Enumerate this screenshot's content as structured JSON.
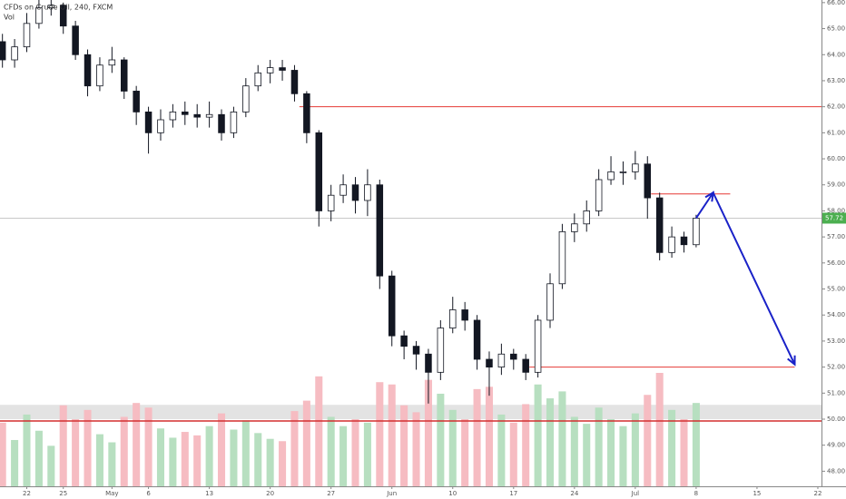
{
  "chart_data": {
    "type": "candlestick",
    "title": "CFDs on Crude Oil, 240, FXCM",
    "subtitle": "Vol",
    "x": [
      -2,
      -1,
      0,
      1,
      2,
      3,
      4,
      5,
      6,
      7,
      8,
      9,
      10,
      11,
      12,
      13,
      14,
      15,
      16,
      17,
      18,
      19,
      20,
      21,
      22,
      23,
      24,
      25,
      26,
      27,
      28,
      29,
      30,
      31,
      32,
      33,
      34,
      35,
      36,
      37,
      38,
      39,
      40,
      41,
      42,
      43,
      44,
      45,
      46,
      47,
      48,
      49,
      50,
      51,
      52,
      53,
      54,
      55
    ],
    "open": [
      64.5,
      63.8,
      64.3,
      65.2,
      65.8,
      65.9,
      65.1,
      64.0,
      62.8,
      63.6,
      63.8,
      62.6,
      61.8,
      61.0,
      61.5,
      61.8,
      61.7,
      61.6,
      61.7,
      61.0,
      61.8,
      62.8,
      63.3,
      63.5,
      63.4,
      62.5,
      61.0,
      58.0,
      58.6,
      59.0,
      58.4,
      59.0,
      55.5,
      53.2,
      52.8,
      52.5,
      51.8,
      53.5,
      54.2,
      53.8,
      52.3,
      52.0,
      52.5,
      52.3,
      51.8,
      53.8,
      55.2,
      57.2,
      57.5,
      58.0,
      59.2,
      59.5,
      59.5,
      59.8,
      58.5,
      56.4,
      57.0,
      56.7
    ],
    "high": [
      64.8,
      64.6,
      65.6,
      66.1,
      66.3,
      66.0,
      65.3,
      64.2,
      63.9,
      64.3,
      63.9,
      62.8,
      62.0,
      61.9,
      62.1,
      62.2,
      62.1,
      62.2,
      61.9,
      62.0,
      63.1,
      63.6,
      63.8,
      63.8,
      63.6,
      62.6,
      61.1,
      59.0,
      59.4,
      59.3,
      59.6,
      59.2,
      55.7,
      53.4,
      53.0,
      52.7,
      53.8,
      54.7,
      54.5,
      54.0,
      52.6,
      52.9,
      52.7,
      52.5,
      54.0,
      55.6,
      57.5,
      57.9,
      58.4,
      59.6,
      60.1,
      59.9,
      60.3,
      60.1,
      58.7,
      57.4,
      57.2,
      57.85
    ],
    "low": [
      63.5,
      63.5,
      64.1,
      65.0,
      65.5,
      64.8,
      63.8,
      62.4,
      62.6,
      63.3,
      62.3,
      61.3,
      60.2,
      60.7,
      61.2,
      61.3,
      61.2,
      61.2,
      60.7,
      60.8,
      61.6,
      62.6,
      62.9,
      63.0,
      62.2,
      60.6,
      57.4,
      57.6,
      58.3,
      57.9,
      57.8,
      55.0,
      52.8,
      52.3,
      51.9,
      50.6,
      51.5,
      53.3,
      53.4,
      51.9,
      50.9,
      51.7,
      51.9,
      51.5,
      51.6,
      53.5,
      55.0,
      56.8,
      57.2,
      57.8,
      59.0,
      59.0,
      59.2,
      57.7,
      56.1,
      56.2,
      56.4,
      56.6
    ],
    "close": [
      63.8,
      64.3,
      65.2,
      65.8,
      65.9,
      65.1,
      64.0,
      62.8,
      63.6,
      63.8,
      62.6,
      61.8,
      61.0,
      61.5,
      61.8,
      61.7,
      61.6,
      61.7,
      61.0,
      61.8,
      62.8,
      63.3,
      63.5,
      63.4,
      62.5,
      61.0,
      58.0,
      58.6,
      59.0,
      58.4,
      59.0,
      55.5,
      53.2,
      52.8,
      52.5,
      51.8,
      53.5,
      54.2,
      53.8,
      52.3,
      52.0,
      52.5,
      52.3,
      51.8,
      53.8,
      55.2,
      57.2,
      57.5,
      58.0,
      59.2,
      59.5,
      59.5,
      59.8,
      58.5,
      56.4,
      57.0,
      56.7,
      57.72
    ],
    "volume": [
      55,
      40,
      62,
      48,
      35,
      70,
      58,
      66,
      45,
      38,
      60,
      72,
      68,
      50,
      42,
      47,
      44,
      52,
      63,
      49,
      57,
      46,
      41,
      39,
      65,
      74,
      95,
      60,
      52,
      58,
      55,
      90,
      88,
      70,
      64,
      92,
      80,
      66,
      58,
      84,
      86,
      62,
      55,
      71,
      88,
      76,
      82,
      60,
      54,
      68,
      58,
      52,
      63,
      79,
      98,
      66,
      58,
      72
    ],
    "up_color": "#131722",
    "down_color": "#131722",
    "volume_up_color": "#b7dfc0",
    "volume_down_color": "#f6bcc2",
    "xlim": [
      -2.2,
      65.3
    ],
    "ylim": [
      47.63,
      66.1
    ],
    "xticks": [
      {
        "value": 0,
        "label": "22"
      },
      {
        "value": 3,
        "label": "25"
      },
      {
        "value": 7,
        "label": "May"
      },
      {
        "value": 10,
        "label": "6"
      },
      {
        "value": 15,
        "label": "13"
      },
      {
        "value": 20,
        "label": "20"
      },
      {
        "value": 25,
        "label": "27"
      },
      {
        "value": 30,
        "label": "Jun"
      },
      {
        "value": 35,
        "label": "10"
      },
      {
        "value": 40,
        "label": "17"
      },
      {
        "value": 45,
        "label": "24"
      },
      {
        "value": 50,
        "label": "Jul"
      },
      {
        "value": 55,
        "label": "8"
      },
      {
        "value": 60,
        "label": "15"
      },
      {
        "value": 65,
        "label": "22"
      }
    ],
    "yticks": [
      {
        "value": 48,
        "label": "48.00"
      },
      {
        "value": 49,
        "label": "49.00"
      },
      {
        "value": 50,
        "label": "50.00"
      },
      {
        "value": 51,
        "label": "51.00"
      },
      {
        "value": 52,
        "label": "52.00"
      },
      {
        "value": 53,
        "label": "53.00"
      },
      {
        "value": 54,
        "label": "54.00"
      },
      {
        "value": 55,
        "label": "55.00"
      },
      {
        "value": 56,
        "label": "56.00"
      },
      {
        "value": 57,
        "label": "57.00"
      },
      {
        "value": 58,
        "label": "58.00"
      },
      {
        "value": 59,
        "label": "59.00"
      },
      {
        "value": 60,
        "label": "60.00"
      },
      {
        "value": 61,
        "label": "61.00"
      },
      {
        "value": 62,
        "label": "62.00"
      },
      {
        "value": 63,
        "label": "63.00"
      },
      {
        "value": 64,
        "label": "64.00"
      },
      {
        "value": 65,
        "label": "65.00"
      },
      {
        "value": 66,
        "label": "66.00"
      }
    ],
    "grid": false,
    "hlines": [
      {
        "value": 62.0,
        "x_start": 22.4,
        "x_end": 65.3,
        "color": "#e53935"
      },
      {
        "value": 58.65,
        "x_start": 51.3,
        "x_end": 57.8,
        "color": "#e53935"
      },
      {
        "value": 52.0,
        "x_start": 41.3,
        "x_end": 63.1,
        "color": "#e53935"
      },
      {
        "value": 49.93,
        "x_start": -2.2,
        "x_end": 65.3,
        "color": "#d32f2f"
      }
    ],
    "band": {
      "from": 50.0,
      "to": 50.55,
      "color": "#dcdcdc"
    },
    "arrow": {
      "x": [
        55,
        56.4,
        63.1
      ],
      "y": [
        57.72,
        58.7,
        52.1
      ],
      "color": "#1a22c8"
    },
    "last_price": {
      "value": 57.72,
      "color": "#4caf50"
    }
  }
}
